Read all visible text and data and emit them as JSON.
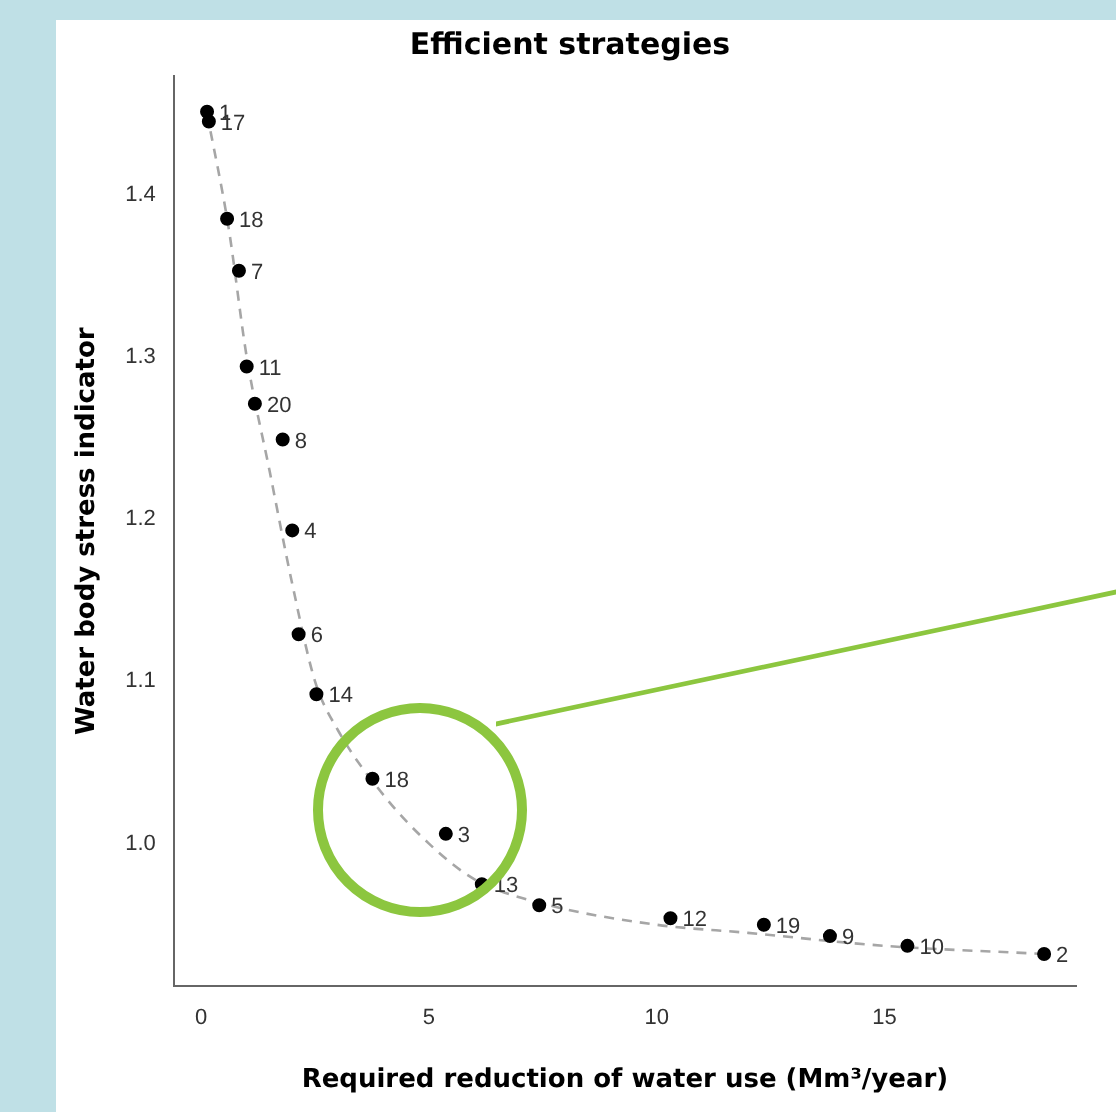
{
  "chart_data": {
    "type": "scatter",
    "title": "Efficient strategies",
    "xlabel": "Required reduction of water use (Mm³/year)",
    "ylabel": "Water body stress indicator",
    "xlim": [
      -0.6,
      19.2
    ],
    "xticks": [
      0,
      5,
      10,
      15
    ],
    "ylim": [
      0.912,
      1.473
    ],
    "yticks": [
      {
        "value": 1.0,
        "label": "1.0"
      },
      1.1,
      1.2,
      1.3,
      1.4
    ],
    "grid": false,
    "series": [
      {
        "type": "scatter",
        "marker": "circle",
        "color": "#000000",
        "x": [
          0.13,
          0.17,
          0.57,
          0.83,
          1.0,
          1.18,
          1.79,
          2.0,
          2.14,
          2.53,
          3.76,
          5.37,
          6.16,
          7.42,
          10.3,
          12.35,
          13.8,
          15.5,
          18.5
        ],
        "values": [
          1.451,
          1.445,
          1.385,
          1.353,
          1.294,
          1.271,
          1.249,
          1.193,
          1.129,
          1.092,
          1.04,
          1.006,
          0.975,
          0.962,
          0.954,
          0.95,
          0.943,
          0.937,
          0.932
        ]
      },
      {
        "type": "line",
        "line_style": "dashed",
        "color": "#a6a6a6",
        "x": [
          0.13,
          0.6,
          1.0,
          1.5,
          2.0,
          2.5,
          3.0,
          4.0,
          5.0,
          6.0,
          7.5,
          10,
          12,
          15,
          18.5
        ],
        "values": [
          1.45,
          1.38,
          1.3,
          1.23,
          1.16,
          1.1,
          1.07,
          1.03,
          1.0,
          0.978,
          0.963,
          0.95,
          0.945,
          0.937,
          0.932
        ]
      }
    ],
    "annotations": [
      {
        "text": "1",
        "x": 0.13,
        "y": 1.451
      },
      {
        "text": "17",
        "x": 0.17,
        "y": 1.445
      },
      {
        "text": "18",
        "x": 0.57,
        "y": 1.385
      },
      {
        "text": "7",
        "x": 0.83,
        "y": 1.353
      },
      {
        "text": "11",
        "x": 1.0,
        "y": 1.294
      },
      {
        "text": "20",
        "x": 1.18,
        "y": 1.271
      },
      {
        "text": "8",
        "x": 1.79,
        "y": 1.249
      },
      {
        "text": "4",
        "x": 2.0,
        "y": 1.193
      },
      {
        "text": "6",
        "x": 2.14,
        "y": 1.129
      },
      {
        "text": "14",
        "x": 2.53,
        "y": 1.092
      },
      {
        "text": "18",
        "x": 3.76,
        "y": 1.04
      },
      {
        "text": "3",
        "x": 5.37,
        "y": 1.006
      },
      {
        "text": "13",
        "x": 6.16,
        "y": 0.975
      },
      {
        "text": "5",
        "x": 7.42,
        "y": 0.962
      },
      {
        "text": "12",
        "x": 10.3,
        "y": 0.954
      },
      {
        "text": "19",
        "x": 12.35,
        "y": 0.95
      },
      {
        "text": "9",
        "x": 13.8,
        "y": 0.943
      },
      {
        "text": "10",
        "x": 15.5,
        "y": 0.937
      },
      {
        "text": "2",
        "x": 18.5,
        "y": 0.932
      }
    ]
  }
}
